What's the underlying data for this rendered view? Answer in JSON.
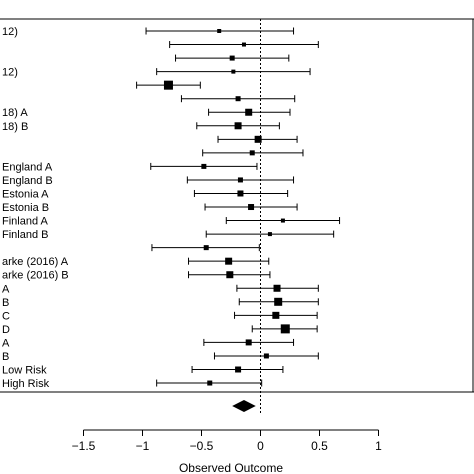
{
  "chart_data": {
    "type": "forest",
    "xlabel": "Observed Outcome",
    "xlim": [
      -1.5,
      1.0
    ],
    "x_ticks": [
      "−1.5",
      "−1",
      "−0.5",
      "0",
      "0.5",
      "1"
    ],
    "x_tick_values": [
      -1.5,
      -1,
      -0.5,
      0,
      0.5,
      1
    ],
    "reference_line": 0,
    "studies": [
      {
        "label": "12)",
        "est": -0.35,
        "lo": -0.97,
        "hi": 0.28,
        "w": 2
      },
      {
        "label": "",
        "est": -0.14,
        "lo": -0.77,
        "hi": 0.49,
        "w": 2
      },
      {
        "label": "",
        "est": -0.24,
        "lo": -0.72,
        "hi": 0.24,
        "w": 2.5
      },
      {
        "label": "12)",
        "est": -0.23,
        "lo": -0.88,
        "hi": 0.42,
        "w": 2
      },
      {
        "label": "",
        "est": -0.78,
        "lo": -1.05,
        "hi": -0.51,
        "w": 4.5
      },
      {
        "label": "",
        "est": -0.19,
        "lo": -0.67,
        "hi": 0.29,
        "w": 2.5
      },
      {
        "label": "18) A",
        "est": -0.1,
        "lo": -0.44,
        "hi": 0.25,
        "w": 3.5
      },
      {
        "label": "18) B",
        "est": -0.19,
        "lo": -0.54,
        "hi": 0.16,
        "w": 3.5
      },
      {
        "label": "",
        "est": -0.02,
        "lo": -0.36,
        "hi": 0.31,
        "w": 3.5
      },
      {
        "label": "",
        "est": -0.07,
        "lo": -0.49,
        "hi": 0.36,
        "w": 2.5
      },
      {
        "label": "England A",
        "est": -0.48,
        "lo": -0.93,
        "hi": -0.03,
        "w": 2.5
      },
      {
        "label": "England B",
        "est": -0.17,
        "lo": -0.62,
        "hi": 0.28,
        "w": 2.5
      },
      {
        "label": "Estonia A",
        "est": -0.17,
        "lo": -0.56,
        "hi": 0.23,
        "w": 3
      },
      {
        "label": "Estonia B",
        "est": -0.08,
        "lo": -0.47,
        "hi": 0.31,
        "w": 3
      },
      {
        "label": "Finland A",
        "est": 0.19,
        "lo": -0.29,
        "hi": 0.67,
        "w": 2
      },
      {
        "label": "Finland B",
        "est": 0.08,
        "lo": -0.46,
        "hi": 0.62,
        "w": 2
      },
      {
        "label": "",
        "est": -0.46,
        "lo": -0.92,
        "hi": -0.01,
        "w": 2.5
      },
      {
        "label": "arke (2016) A",
        "est": -0.27,
        "lo": -0.61,
        "hi": 0.07,
        "w": 3.5
      },
      {
        "label": "arke (2016) B",
        "est": -0.26,
        "lo": -0.61,
        "hi": 0.08,
        "w": 3.5
      },
      {
        "label": "A",
        "est": 0.14,
        "lo": -0.2,
        "hi": 0.49,
        "w": 3.5
      },
      {
        "label": "B",
        "est": 0.15,
        "lo": -0.18,
        "hi": 0.49,
        "w": 4
      },
      {
        "label": "C",
        "est": 0.13,
        "lo": -0.22,
        "hi": 0.48,
        "w": 3.5
      },
      {
        "label": "D",
        "est": 0.21,
        "lo": -0.07,
        "hi": 0.48,
        "w": 4.5
      },
      {
        "label": "A",
        "est": -0.1,
        "lo": -0.48,
        "hi": 0.28,
        "w": 3
      },
      {
        "label": "B",
        "est": 0.05,
        "lo": -0.39,
        "hi": 0.49,
        "w": 2.5
      },
      {
        "label": "Low Risk",
        "est": -0.19,
        "lo": -0.58,
        "hi": 0.19,
        "w": 3
      },
      {
        "label": "High Risk",
        "est": -0.43,
        "lo": -0.88,
        "hi": 0.01,
        "w": 2.5
      }
    ],
    "summary": {
      "est": -0.14,
      "lo": -0.24,
      "hi": -0.04
    }
  }
}
